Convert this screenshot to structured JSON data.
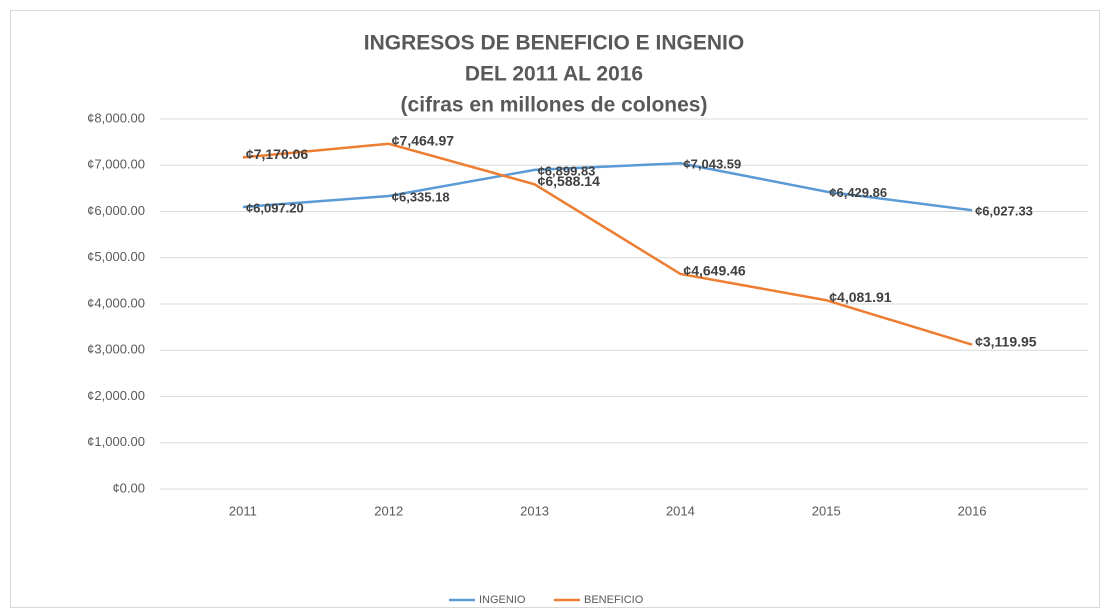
{
  "chart_data": {
    "type": "line",
    "title": [
      "INGRESOS DE BENEFICIO E INGENIO",
      "DEL 2011 AL 2016",
      "(cifras en millones de colones)"
    ],
    "categories": [
      "2011",
      "2012",
      "2013",
      "2014",
      "2015",
      "2016"
    ],
    "series": [
      {
        "name": "INGENIO",
        "color": "#5b9bd5",
        "values": [
          6097.2,
          6335.18,
          6899.83,
          7043.59,
          6429.86,
          6027.33
        ],
        "value_labels": [
          "¢6,097.20",
          "¢6,335.18",
          "¢6,899.83",
          "¢7,043.59",
          "¢6,429.86",
          "¢6,027.33"
        ]
      },
      {
        "name": "BENEFICIO",
        "color": "#ed7d31",
        "values": [
          7170.06,
          7464.97,
          6588.14,
          4649.46,
          4081.91,
          3119.95
        ],
        "value_labels": [
          "¢7,170.06",
          "¢7,464.97",
          "¢6,588.14",
          "¢4,649.46",
          "¢4,081.91",
          "¢3,119.95"
        ]
      }
    ],
    "ylim": [
      0,
      8000
    ],
    "yticks": [
      {
        "value": 0,
        "label": "¢0.00"
      },
      {
        "value": 1000,
        "label": "¢1,000.00"
      },
      {
        "value": 2000,
        "label": "¢2,000.00"
      },
      {
        "value": 3000,
        "label": "¢3,000.00"
      },
      {
        "value": 4000,
        "label": "¢4,000.00"
      },
      {
        "value": 5000,
        "label": "¢5,000.00"
      },
      {
        "value": 6000,
        "label": "¢6,000.00"
      },
      {
        "value": 7000,
        "label": "¢7,000.00"
      },
      {
        "value": 8000,
        "label": "¢8,000.00"
      }
    ],
    "grid": true,
    "legend": "bottom"
  }
}
